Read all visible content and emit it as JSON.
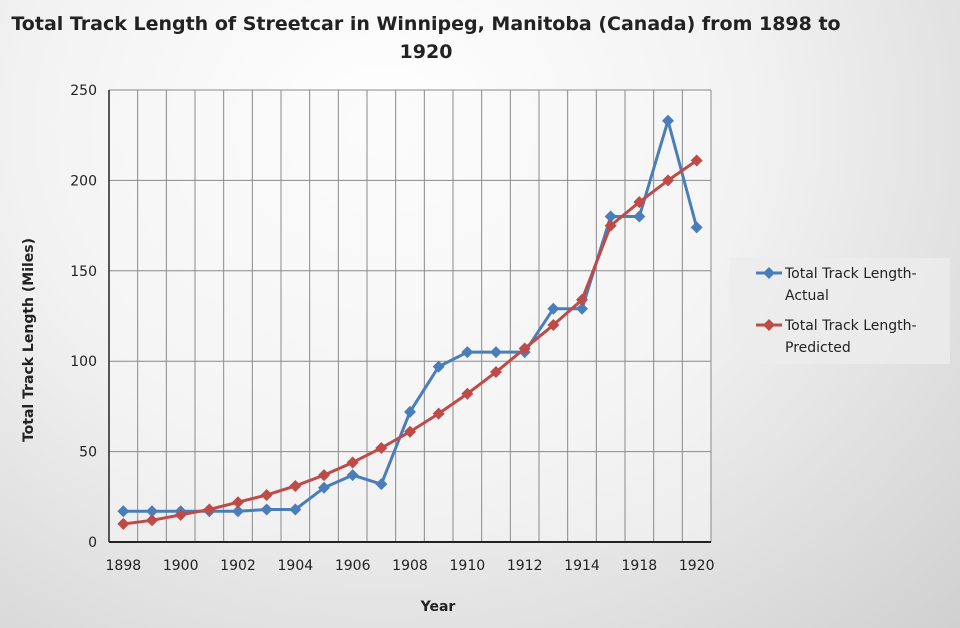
{
  "chart_data": {
    "type": "line",
    "title": "Total Track Length of Streetcar in Winnipeg, Manitoba (Canada) from 1898 to 1920",
    "title_lines": [
      "Total Track Length of Streetcar in Winnipeg, Manitoba (Canada) from 1898 to",
      "1920"
    ],
    "xlabel": "Year",
    "ylabel": "Total Track Length (Miles)",
    "ylim": [
      0,
      250
    ],
    "yticks": [
      0,
      50,
      100,
      150,
      200,
      250
    ],
    "categories": [
      "1898",
      "",
      "1900",
      "",
      "1902",
      "",
      "1904",
      "",
      "1906",
      "",
      "1908",
      "",
      "1910",
      "",
      "1912",
      "",
      "1914",
      "",
      "1918",
      "",
      "1920"
    ],
    "grid": "on",
    "legend_position": "right",
    "series": [
      {
        "name": "Total Track Length-Actual",
        "legend_lines": [
          "Total Track Length-",
          "Actual"
        ],
        "color": "#4a7ebb",
        "values": [
          17,
          17,
          17,
          17,
          17,
          18,
          18,
          30,
          37,
          32,
          72,
          97,
          105,
          105,
          105,
          129,
          129,
          180,
          180,
          233,
          174
        ]
      },
      {
        "name": "Total Track Length-Predicted",
        "legend_lines": [
          "Total Track Length-",
          "Predicted"
        ],
        "color": "#be4b48",
        "values": [
          10,
          12,
          15,
          18,
          22,
          26,
          31,
          37,
          44,
          52,
          61,
          71,
          82,
          94,
          107,
          120,
          134,
          175,
          188,
          200,
          211
        ]
      }
    ]
  }
}
